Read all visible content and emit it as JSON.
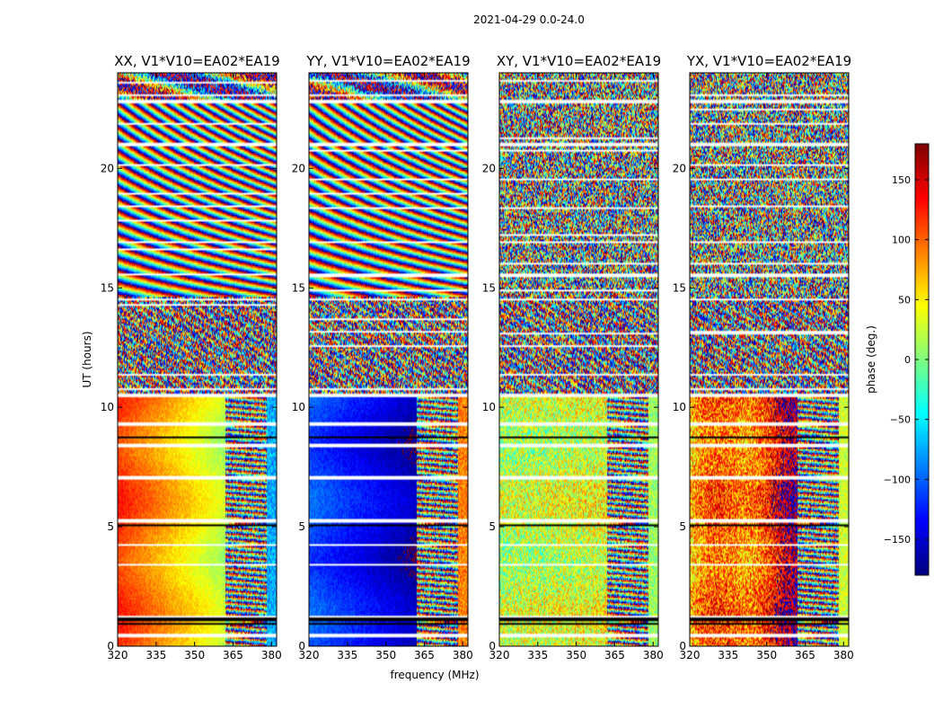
{
  "chart_data": {
    "type": "heatmap",
    "suptitle": "2021-04-29 0.0-24.0",
    "xlabel": "frequency (MHz)",
    "ylabel": "UT (hours)",
    "xlim": [
      320,
      382
    ],
    "ylim": [
      0,
      24
    ],
    "xticks": [
      320,
      335,
      350,
      365,
      380
    ],
    "yticks": [
      0,
      5,
      10,
      15,
      20
    ],
    "panels": [
      {
        "title": "XX, V1*V10=EA02*EA19",
        "day_phase_start": 120,
        "day_phase_end": 20,
        "edge_phase": -75
      },
      {
        "title": "YY, V1*V10=EA02*EA19",
        "day_phase_start": -105,
        "day_phase_end": -165,
        "edge_phase": 90
      },
      {
        "title": "XY, V1*V10=EA02*EA19",
        "day_phase_start": 20,
        "day_phase_end": 35,
        "edge_phase": 10
      },
      {
        "title": "YX, V1*V10=EA02*EA19",
        "day_phase_start": 60,
        "day_phase_end": 150,
        "edge_phase": 30
      }
    ],
    "colorbar": {
      "label": "phase (deg.)",
      "range": [
        -180,
        180
      ],
      "ticks": [
        150,
        100,
        50,
        0,
        -50,
        -100,
        -150
      ],
      "tick_labels": [
        "150",
        "100",
        "50",
        "0",
        "−50",
        "−100",
        "−150"
      ],
      "colormap": "jet"
    },
    "blank_rows_hours": [
      0.45,
      1.25,
      3.4,
      4.25,
      5.25,
      7.05,
      8.4,
      9.3,
      10.5,
      14.5,
      15.55,
      16.9,
      21.0,
      22.8
    ],
    "dark_rows_hours": [
      0.95,
      1.1,
      1.2,
      5.05,
      8.75
    ]
  }
}
